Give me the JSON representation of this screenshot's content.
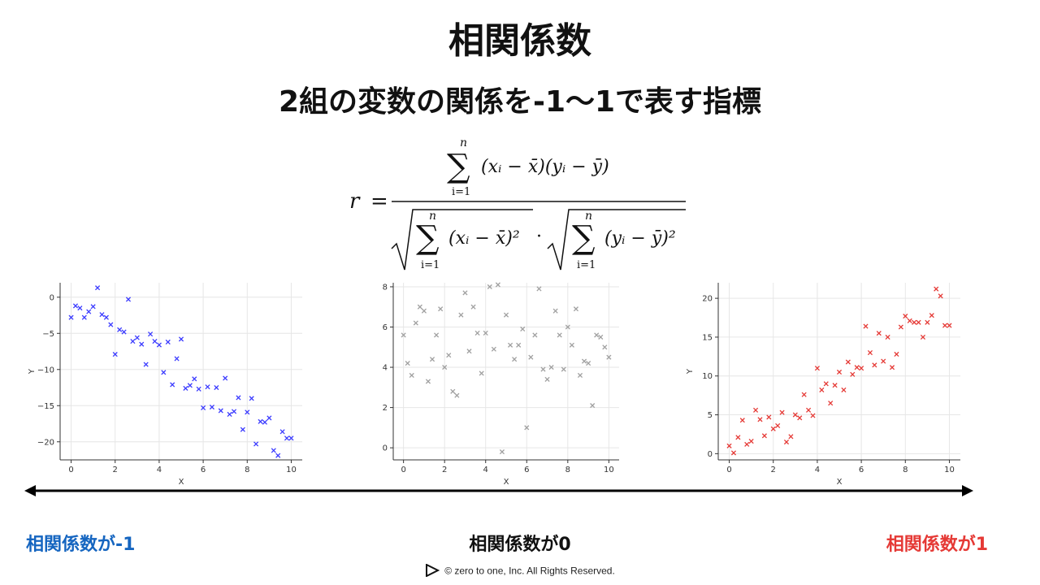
{
  "title": "相関係数",
  "subtitle": "2組の変数の関係を-1〜1で表す指標",
  "formula": {
    "lhs": "r",
    "numerator_terms": "(xᵢ − x̄)(yᵢ − ȳ)",
    "denominator_left": "(xᵢ − x̄)²",
    "denominator_right": "(yᵢ − ȳ)²",
    "sum_top": "n",
    "sum_bottom": "i=1",
    "dot": "·"
  },
  "labels": {
    "negative": "相関係数が-1",
    "zero": "相関係数が0",
    "positive": "相関係数が1"
  },
  "footer": "©  zero to one, Inc. All Rights Reserved.",
  "colors": {
    "negative": "#1565c0",
    "zero_points": "#a0a0a0",
    "negative_points": "#3b3bff",
    "positive_points": "#e53935",
    "positive": "#e53935"
  },
  "chart_data": [
    {
      "type": "scatter",
      "xlabel": "X",
      "ylabel": "Y",
      "xlim": [
        -0.5,
        10.5
      ],
      "ylim": [
        -22.5,
        2
      ],
      "xticks": [
        0,
        2,
        4,
        6,
        8,
        10
      ],
      "yticks": [
        0,
        -5,
        -10,
        -15,
        -20
      ],
      "ytick_labels": [
        "0",
        "−5",
        "−10",
        "−15",
        "−20"
      ],
      "color": "#3b3bff",
      "x": [
        0,
        0.2,
        0.4,
        0.6,
        0.8,
        1.0,
        1.2,
        1.4,
        1.6,
        1.8,
        2.0,
        2.2,
        2.4,
        2.6,
        2.8,
        3.0,
        3.2,
        3.4,
        3.6,
        3.8,
        4.0,
        4.2,
        4.4,
        4.6,
        4.8,
        5.0,
        5.2,
        5.4,
        5.6,
        5.8,
        6.0,
        6.2,
        6.4,
        6.6,
        6.8,
        7.0,
        7.2,
        7.4,
        7.6,
        7.8,
        8.0,
        8.2,
        8.4,
        8.6,
        8.8,
        9.0,
        9.2,
        9.4,
        9.6,
        9.8,
        10.0
      ],
      "y": [
        -2.8,
        -1.2,
        -1.5,
        -2.8,
        -2.0,
        -1.3,
        1.3,
        -2.4,
        -2.8,
        -3.8,
        -7.9,
        -4.5,
        -4.8,
        -0.3,
        -6.1,
        -5.6,
        -6.5,
        -9.3,
        -5.1,
        -6.1,
        -6.6,
        -10.4,
        -6.2,
        -12.1,
        -8.5,
        -5.8,
        -12.6,
        -12.2,
        -11.3,
        -12.7,
        -15.3,
        -12.4,
        -15.2,
        -12.5,
        -15.7,
        -11.2,
        -16.2,
        -15.8,
        -13.9,
        -18.3,
        -15.9,
        -14.0,
        -20.3,
        -17.2,
        -17.3,
        -16.7,
        -21.2,
        -21.9,
        -18.6,
        -19.5,
        -19.5
      ]
    },
    {
      "type": "scatter",
      "xlabel": "X",
      "ylabel": "",
      "xlim": [
        -0.5,
        10.5
      ],
      "ylim": [
        -0.6,
        8.2
      ],
      "xticks": [
        0,
        2,
        4,
        6,
        8,
        10
      ],
      "yticks": [
        0,
        2,
        4,
        6,
        8
      ],
      "ytick_labels": [
        "0",
        "2",
        "4",
        "6",
        "8"
      ],
      "color": "#a0a0a0",
      "x": [
        0,
        0.2,
        0.4,
        0.6,
        0.8,
        1.0,
        1.2,
        1.4,
        1.6,
        1.8,
        2.0,
        2.2,
        2.4,
        2.6,
        2.8,
        3.0,
        3.2,
        3.4,
        3.6,
        3.8,
        4.0,
        4.2,
        4.4,
        4.6,
        4.8,
        5.0,
        5.2,
        5.4,
        5.6,
        5.8,
        6.0,
        6.2,
        6.4,
        6.6,
        6.8,
        7.0,
        7.2,
        7.4,
        7.6,
        7.8,
        8.0,
        8.2,
        8.4,
        8.6,
        8.8,
        9.0,
        9.2,
        9.4,
        9.6,
        9.8,
        10.0
      ],
      "y": [
        5.6,
        4.2,
        3.6,
        6.2,
        7.0,
        6.8,
        3.3,
        4.4,
        5.6,
        6.9,
        4.0,
        4.6,
        2.8,
        2.6,
        6.6,
        7.7,
        4.8,
        7.0,
        5.7,
        3.7,
        5.7,
        8.0,
        4.9,
        8.1,
        -0.2,
        6.6,
        5.1,
        4.4,
        5.1,
        5.9,
        1.0,
        4.5,
        5.6,
        7.9,
        3.9,
        3.4,
        4.0,
        6.8,
        5.6,
        3.9,
        6.0,
        5.1,
        6.9,
        3.6,
        4.3,
        4.2,
        2.1,
        5.6,
        5.5,
        5.0,
        4.5
      ]
    },
    {
      "type": "scatter",
      "xlabel": "X",
      "ylabel": "Y",
      "xlim": [
        -0.5,
        10.5
      ],
      "ylim": [
        -0.8,
        22
      ],
      "xticks": [
        0,
        2,
        4,
        6,
        8,
        10
      ],
      "yticks": [
        0,
        5,
        10,
        15,
        20
      ],
      "ytick_labels": [
        "0",
        "5",
        "10",
        "15",
        "20"
      ],
      "color": "#e53935",
      "x": [
        0,
        0.2,
        0.4,
        0.6,
        0.8,
        1.0,
        1.2,
        1.4,
        1.6,
        1.8,
        2.0,
        2.2,
        2.4,
        2.6,
        2.8,
        3.0,
        3.2,
        3.4,
        3.6,
        3.8,
        4.0,
        4.2,
        4.4,
        4.6,
        4.8,
        5.0,
        5.2,
        5.4,
        5.6,
        5.8,
        6.0,
        6.2,
        6.4,
        6.6,
        6.8,
        7.0,
        7.2,
        7.4,
        7.6,
        7.8,
        8.0,
        8.2,
        8.4,
        8.6,
        8.8,
        9.0,
        9.2,
        9.4,
        9.6,
        9.8,
        10.0
      ],
      "y": [
        1.0,
        0.1,
        2.1,
        4.3,
        1.2,
        1.6,
        5.6,
        4.4,
        2.3,
        4.7,
        3.2,
        3.6,
        5.3,
        1.5,
        2.2,
        5.0,
        4.6,
        7.6,
        5.6,
        4.9,
        11.0,
        8.2,
        9.0,
        6.5,
        8.8,
        10.5,
        8.2,
        11.8,
        10.2,
        11.1,
        11.0,
        16.4,
        13.0,
        11.4,
        15.5,
        11.9,
        15.0,
        11.1,
        12.8,
        16.3,
        17.7,
        17.1,
        16.9,
        16.9,
        15.0,
        16.9,
        17.8,
        21.2,
        20.3,
        16.5,
        16.5
      ]
    }
  ]
}
